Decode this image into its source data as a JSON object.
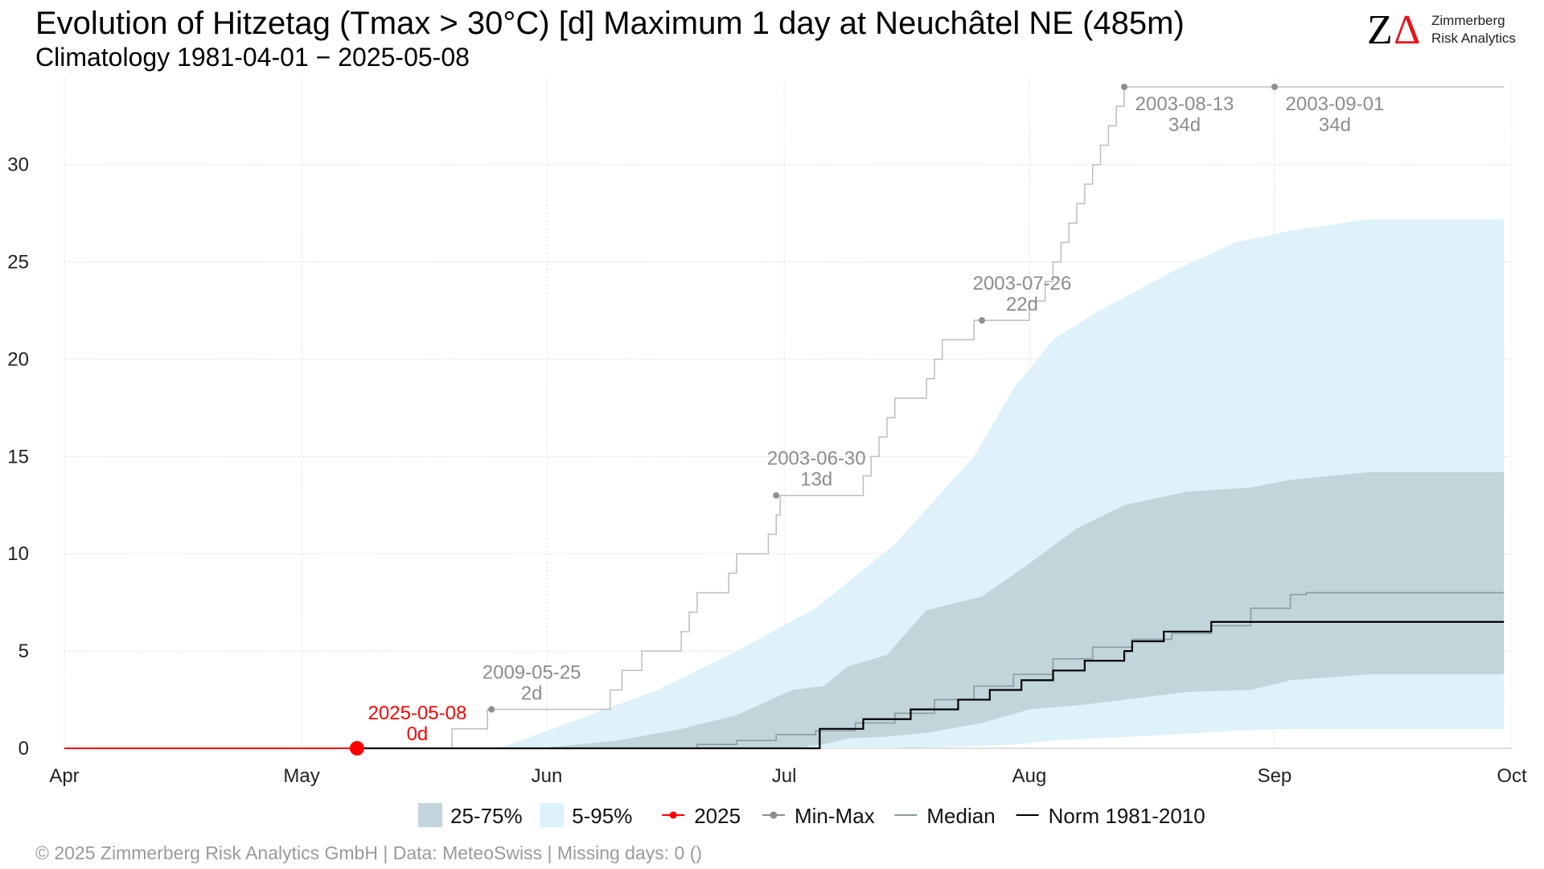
{
  "header": {
    "title": "Evolution of Hitzetag (Tmax > 30°C) [d] Maximum 1 day at Neuchâtel  NE (485m)",
    "subtitle": "Climatology 1981-04-01 − 2025-05-08"
  },
  "logo": {
    "mark_z": "Z",
    "mark_delta": "Δ",
    "line1": "Zimmerberg",
    "line2": "Risk Analytics",
    "accent_color": "#e8141b"
  },
  "footer": {
    "text": "©  2025 Zimmerberg Risk Analytics GmbH | Data: MeteoSwiss | Missing days: 0 ()"
  },
  "legend": {
    "items": [
      {
        "label": "25-75%",
        "symbol": "box",
        "color": "#c1d5db"
      },
      {
        "label": "5-95%",
        "symbol": "box",
        "color": "#dff2f9"
      },
      {
        "label": "2025",
        "symbol": "line-point",
        "color": "#ff0000"
      },
      {
        "label": "Min-Max",
        "symbol": "line-point",
        "color": "#8f8f8f"
      },
      {
        "label": "Median",
        "symbol": "line",
        "color": "#8a9aa0"
      },
      {
        "label": "Norm 1981-2010",
        "symbol": "line",
        "color": "#000000"
      }
    ]
  },
  "chart_data": {
    "type": "area",
    "x_axis": {
      "unit": "day-of-season (Apr 1 = 0)",
      "range": [
        0,
        183
      ],
      "ticks": [
        {
          "label": "Apr",
          "day": 0
        },
        {
          "label": "May",
          "day": 30
        },
        {
          "label": "Jun",
          "day": 61
        },
        {
          "label": "Jul",
          "day": 91
        },
        {
          "label": "Aug",
          "day": 122
        },
        {
          "label": "Sep",
          "day": 153
        },
        {
          "label": "Oct",
          "day": 183
        }
      ]
    },
    "y_axis": {
      "range": [
        0,
        34
      ],
      "ticks": [
        0,
        5,
        10,
        15,
        20,
        25,
        30
      ]
    },
    "grid": true,
    "legend_position": "bottom",
    "series": [
      {
        "name": "5-95%",
        "kind": "band",
        "color": "#dff2f9",
        "points": [
          [
            55,
            0,
            0
          ],
          [
            65,
            0,
            1.5
          ],
          [
            75,
            0,
            3
          ],
          [
            85,
            0,
            5
          ],
          [
            95,
            0,
            7.2
          ],
          [
            105,
            0,
            10.5
          ],
          [
            115,
            0.1,
            15
          ],
          [
            120,
            0.2,
            18.5
          ],
          [
            125,
            0.4,
            21
          ],
          [
            130,
            0.5,
            22.3
          ],
          [
            140,
            0.7,
            24.5
          ],
          [
            148,
            0.9,
            26
          ],
          [
            155,
            1.0,
            26.6
          ],
          [
            165,
            1.0,
            27.2
          ],
          [
            182,
            1.0,
            27.2
          ]
        ]
      },
      {
        "name": "25-75%",
        "kind": "band",
        "color": "#c1d5db",
        "points": [
          [
            60,
            0,
            0
          ],
          [
            70,
            0,
            0.4
          ],
          [
            78,
            0,
            1
          ],
          [
            85,
            0,
            1.7
          ],
          [
            92,
            0,
            3
          ],
          [
            96,
            0.2,
            3.2
          ],
          [
            99,
            0.5,
            4.2
          ],
          [
            104,
            0.6,
            4.8
          ],
          [
            109,
            0.8,
            7.1
          ],
          [
            116,
            1.3,
            7.8
          ],
          [
            122,
            2.0,
            9.5
          ],
          [
            128,
            2.2,
            11.3
          ],
          [
            134,
            2.5,
            12.5
          ],
          [
            142,
            2.9,
            13.2
          ],
          [
            150,
            3.0,
            13.4
          ],
          [
            155,
            3.5,
            13.8
          ],
          [
            165,
            3.8,
            14.2
          ],
          [
            182,
            3.8,
            14.2
          ]
        ]
      },
      {
        "name": "Median",
        "kind": "step",
        "color": "#8a9aa0",
        "points": [
          [
            75,
            0
          ],
          [
            80,
            0.2
          ],
          [
            85,
            0.4
          ],
          [
            90,
            0.7
          ],
          [
            95,
            0.9
          ],
          [
            100,
            1.3
          ],
          [
            105,
            1.8
          ],
          [
            110,
            2.5
          ],
          [
            115,
            3.2
          ],
          [
            120,
            3.8
          ],
          [
            125,
            4.6
          ],
          [
            130,
            5.2
          ],
          [
            135,
            5.6
          ],
          [
            140,
            5.9
          ],
          [
            145,
            6.3
          ],
          [
            150,
            7.2
          ],
          [
            155,
            7.9
          ],
          [
            157,
            8.0
          ],
          [
            182,
            8.0
          ]
        ]
      },
      {
        "name": "Norm 1981-2010",
        "kind": "step",
        "color": "#000000",
        "points": [
          [
            37,
            0
          ],
          [
            95.5,
            1
          ],
          [
            101,
            1.5
          ],
          [
            107,
            2
          ],
          [
            113,
            2.5
          ],
          [
            117,
            3
          ],
          [
            121,
            3.5
          ],
          [
            125,
            4
          ],
          [
            129,
            4.5
          ],
          [
            134,
            5
          ],
          [
            135,
            5.5
          ],
          [
            139,
            6
          ],
          [
            145,
            6.5
          ],
          [
            182,
            6.5
          ]
        ]
      },
      {
        "name": "Min-Max",
        "kind": "step",
        "color": "#bdbdbd",
        "points": [
          [
            49,
            1
          ],
          [
            53.5,
            2
          ],
          [
            69,
            3
          ],
          [
            70.5,
            4
          ],
          [
            73,
            5
          ],
          [
            78,
            6
          ],
          [
            79,
            7
          ],
          [
            80,
            8
          ],
          [
            84,
            9
          ],
          [
            85,
            10
          ],
          [
            89,
            11
          ],
          [
            90,
            12
          ],
          [
            90.5,
            13
          ],
          [
            101,
            14
          ],
          [
            102,
            15
          ],
          [
            103,
            16
          ],
          [
            104,
            17
          ],
          [
            105,
            18
          ],
          [
            109,
            19
          ],
          [
            110,
            20
          ],
          [
            111,
            21
          ],
          [
            115,
            22
          ],
          [
            122,
            23
          ],
          [
            124,
            24
          ],
          [
            125,
            25
          ],
          [
            126,
            26
          ],
          [
            127,
            27
          ],
          [
            128,
            28
          ],
          [
            129,
            29
          ],
          [
            130,
            30
          ],
          [
            131,
            31
          ],
          [
            132,
            32
          ],
          [
            133,
            33
          ],
          [
            134,
            34
          ],
          [
            182,
            34
          ]
        ]
      },
      {
        "name": "2025",
        "kind": "line",
        "color": "#ff0000",
        "points": [
          [
            0,
            0
          ],
          [
            37,
            0
          ]
        ]
      }
    ],
    "annotations": [
      {
        "date": "2025-05-08",
        "value_label": "0d",
        "x": 37,
        "y": 0,
        "style": "red"
      },
      {
        "date": "2009-05-25",
        "value_label": "2d",
        "x": 54,
        "y": 2,
        "style": "grey"
      },
      {
        "date": "2003-06-30",
        "value_label": "13d",
        "x": 90,
        "y": 13,
        "style": "grey"
      },
      {
        "date": "2003-07-26",
        "value_label": "22d",
        "x": 116,
        "y": 22,
        "style": "grey"
      },
      {
        "date": "2003-08-13",
        "value_label": "34d",
        "x": 134,
        "y": 34,
        "style": "grey"
      },
      {
        "date": "2003-09-01",
        "value_label": "34d",
        "x": 153,
        "y": 34,
        "style": "grey"
      }
    ]
  }
}
